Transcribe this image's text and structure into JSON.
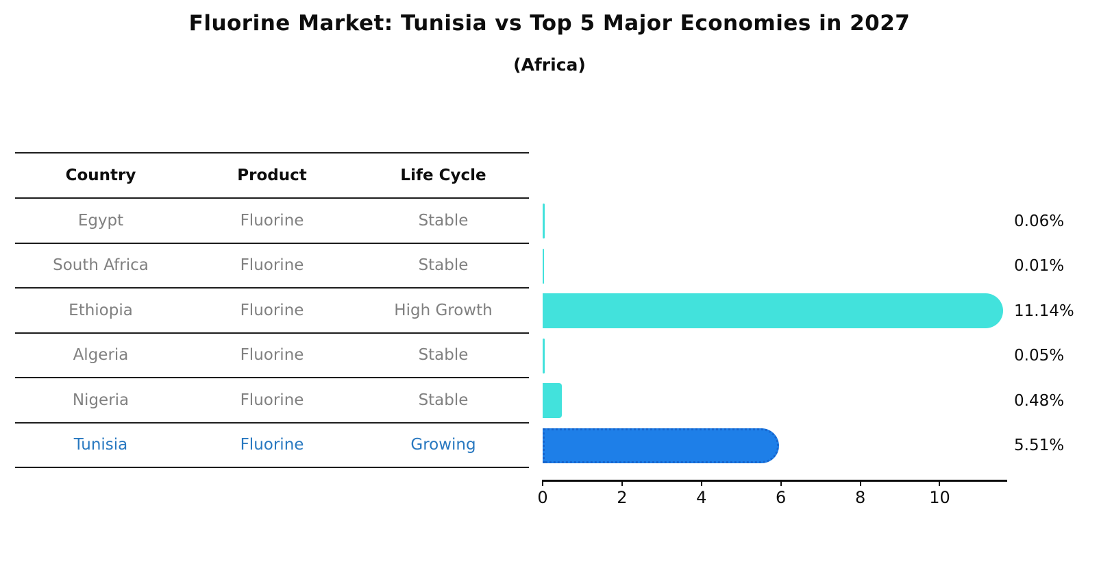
{
  "title": "Fluorine Market: Tunisia vs Top 5 Major Economies in 2027",
  "subtitle": "(Africa)",
  "table": {
    "headers": [
      "Country",
      "Product",
      "Life Cycle"
    ],
    "rows": [
      {
        "country": "Egypt",
        "product": "Fluorine",
        "life_cycle": "Stable"
      },
      {
        "country": "South Africa",
        "product": "Fluorine",
        "life_cycle": "Stable"
      },
      {
        "country": "Ethiopia",
        "product": "Fluorine",
        "life_cycle": "High Growth"
      },
      {
        "country": "Algeria",
        "product": "Fluorine",
        "life_cycle": "Stable"
      },
      {
        "country": "Nigeria",
        "product": "Fluorine",
        "life_cycle": "Stable"
      },
      {
        "country": "Tunisia",
        "product": "Fluorine",
        "life_cycle": "Growing"
      }
    ]
  },
  "chart_data": {
    "type": "bar",
    "orientation": "horizontal",
    "title": "Fluorine Market: Tunisia vs Top 5 Major Economies in 2027 (Africa)",
    "categories": [
      "Egypt",
      "South Africa",
      "Ethiopia",
      "Algeria",
      "Nigeria",
      "Tunisia"
    ],
    "values": [
      0.06,
      0.01,
      11.14,
      0.05,
      0.48,
      5.51
    ],
    "bar_labels": [
      "0.06%",
      "0.01%",
      "11.14%",
      "0.05%",
      "0.48%",
      "5.51%"
    ],
    "highlight_category": "Tunisia",
    "x_ticks": [
      0,
      2,
      4,
      6,
      8,
      10
    ],
    "xlim": [
      0,
      11.7
    ],
    "grid": false,
    "legend": false,
    "colors": {
      "bar_default": "#42e2dc",
      "bar_highlight": "#1e7fe8",
      "bar_highlight_border": "#1765cd",
      "highlight_text": "#2878c0",
      "muted_text": "#808080",
      "text": "#0d0d0d"
    }
  }
}
